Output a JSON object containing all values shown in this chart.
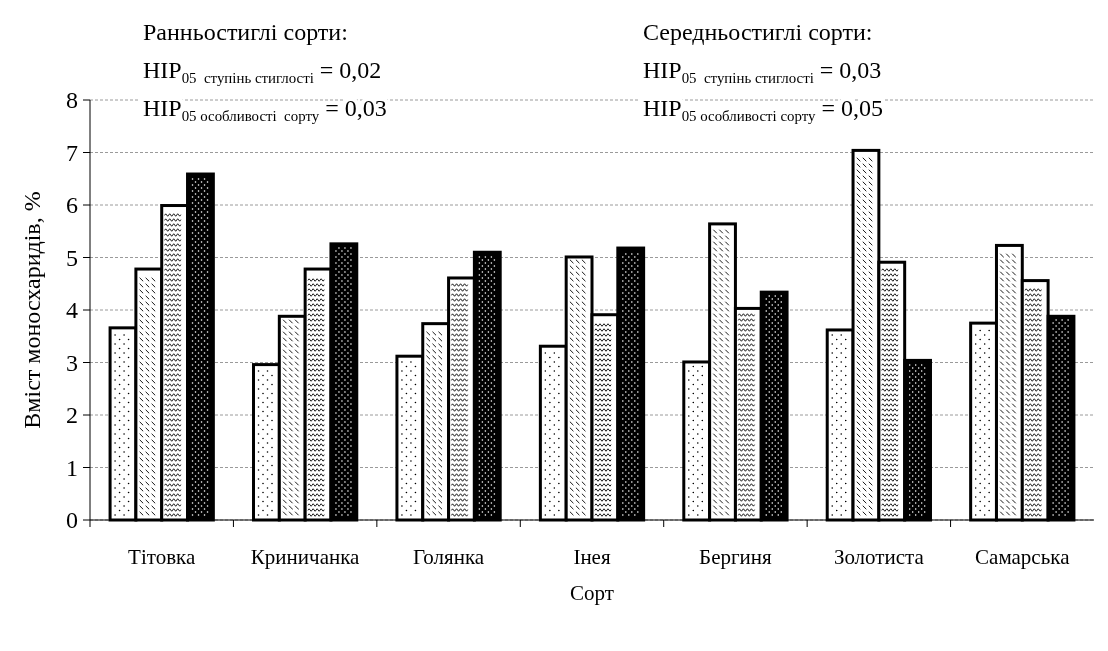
{
  "chart_data": {
    "type": "bar",
    "xlabel": "Сорт",
    "ylabel": "Вміст моносхаридів, %",
    "categories": [
      "Тітовка",
      "Криничанка",
      "Голянка",
      "Інея",
      "Бергиня",
      "Золотиста",
      "Самарська"
    ],
    "series": [
      {
        "color": "#ffffff",
        "values": [
          3.66,
          2.96,
          3.12,
          3.31,
          3.01,
          3.62,
          3.75
        ]
      },
      {
        "color": "#ffffff",
        "values": [
          4.78,
          3.88,
          3.74,
          5.01,
          5.64,
          7.04,
          5.23
        ]
      },
      {
        "color": "#ffffff",
        "values": [
          5.99,
          4.78,
          4.61,
          3.91,
          4.03,
          4.91,
          4.56
        ]
      },
      {
        "color": "#000000",
        "values": [
          6.59,
          5.26,
          5.1,
          5.18,
          4.34,
          3.04,
          3.88
        ]
      }
    ],
    "ylim": [
      0,
      8
    ],
    "yticks": [
      0,
      1,
      2,
      3,
      4,
      5,
      6,
      7,
      8
    ],
    "grid": "y",
    "annotations": [
      "Ранньостиглі сорти:",
      "НІР$_{05  ступінь стиглості}$ = 0,02",
      "НІР$_{05 особливості  сорту}$ = 0,03",
      "Середньостиглі сорти:",
      "НІР$_{05  ступінь стиглості}$ = 0,03",
      "НІР$_{05 особливості сорту}$ = 0,05"
    ]
  }
}
